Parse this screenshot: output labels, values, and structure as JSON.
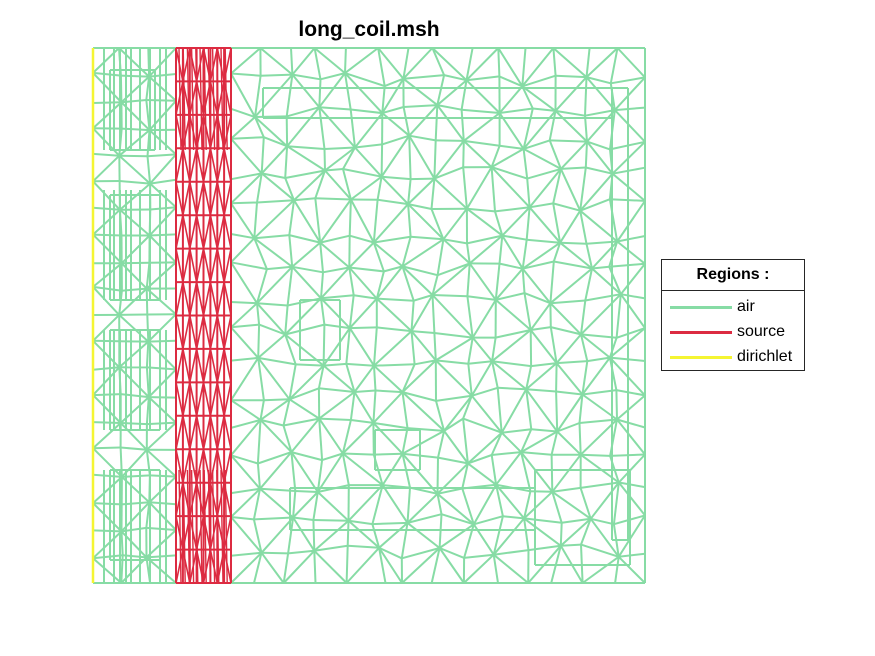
{
  "title": "long_coil.msh",
  "legend": {
    "title": "Regions :",
    "entries": [
      {
        "label": "air",
        "color": "#87dca5"
      },
      {
        "label": "source",
        "color": "#dc2b41"
      },
      {
        "label": "dirichlet",
        "color": "#f5f532"
      }
    ]
  },
  "colors": {
    "air": "#87dca5",
    "source": "#dc2b41",
    "dirichlet": "#f5f532",
    "background": "#ffffff"
  }
}
